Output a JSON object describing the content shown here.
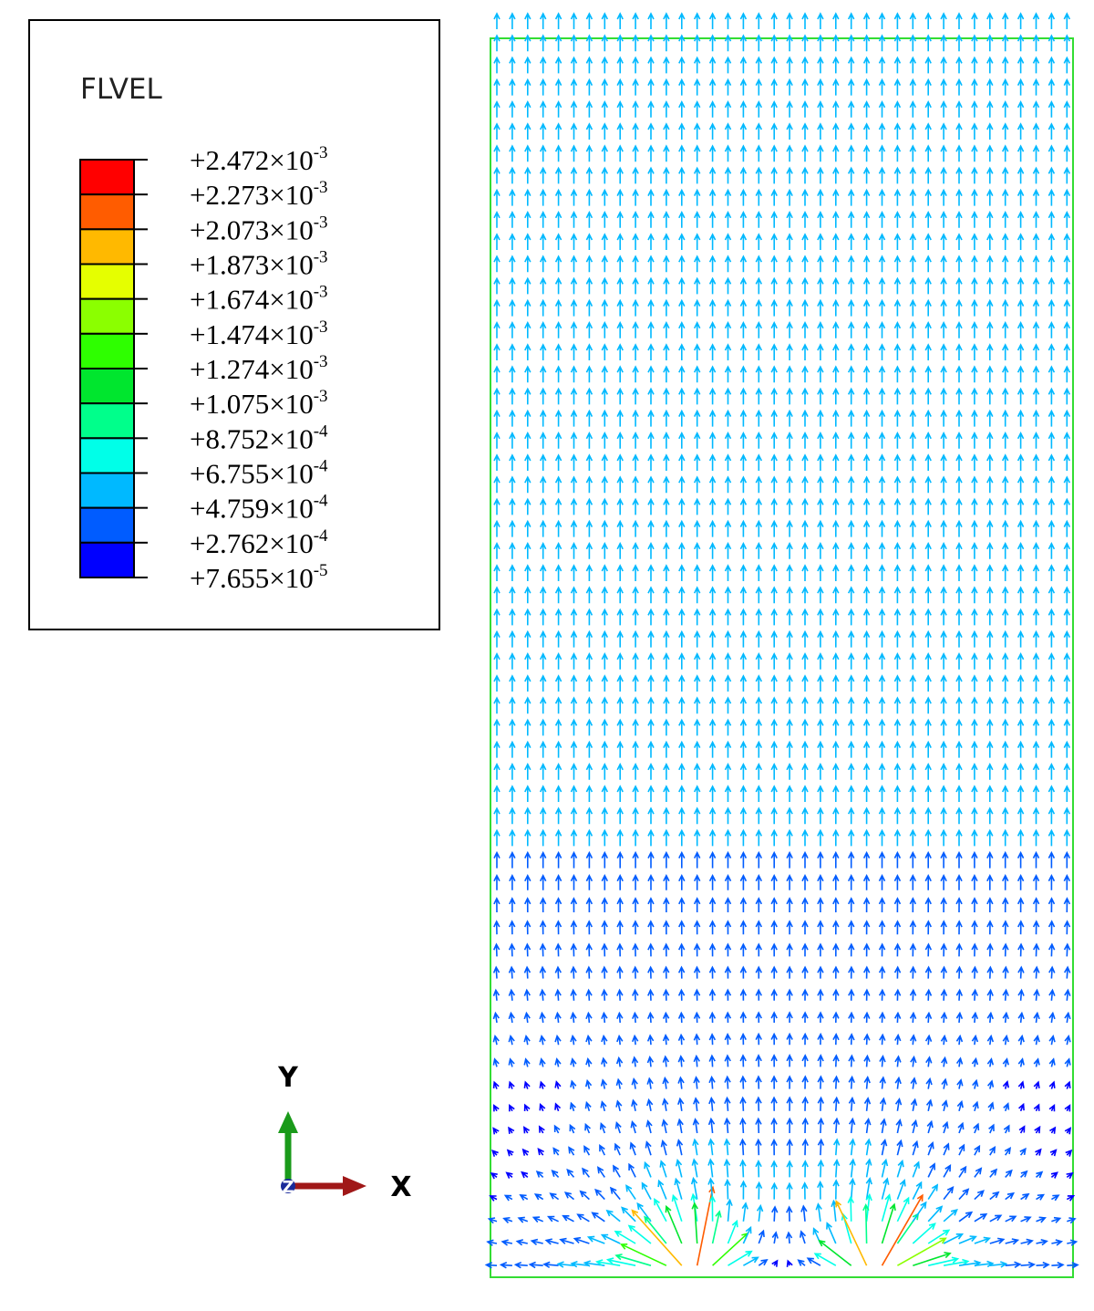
{
  "legend": {
    "title": "FLVEL",
    "labels": [
      {
        "base": "+2.472×10",
        "exp": "-3"
      },
      {
        "base": "+2.273×10",
        "exp": "-3"
      },
      {
        "base": "+2.073×10",
        "exp": "-3"
      },
      {
        "base": "+1.873×10",
        "exp": "-3"
      },
      {
        "base": "+1.674×10",
        "exp": "-3"
      },
      {
        "base": "+1.474×10",
        "exp": "-3"
      },
      {
        "base": "+1.274×10",
        "exp": "-3"
      },
      {
        "base": "+1.075×10",
        "exp": "-3"
      },
      {
        "base": "+8.752×10",
        "exp": "-4"
      },
      {
        "base": "+6.755×10",
        "exp": "-4"
      },
      {
        "base": "+4.759×10",
        "exp": "-4"
      },
      {
        "base": "+2.762×10",
        "exp": "-4"
      },
      {
        "base": "+7.655×10",
        "exp": "-5"
      }
    ],
    "colors": [
      "#ff0000",
      "#ff5c00",
      "#ffb900",
      "#e5ff00",
      "#8bff00",
      "#2eff00",
      "#00e62e",
      "#00ff8b",
      "#00ffe8",
      "#00b9ff",
      "#005cff",
      "#0000ff"
    ]
  },
  "triad": {
    "y": "Y",
    "x": "X",
    "z": "Z"
  }
}
